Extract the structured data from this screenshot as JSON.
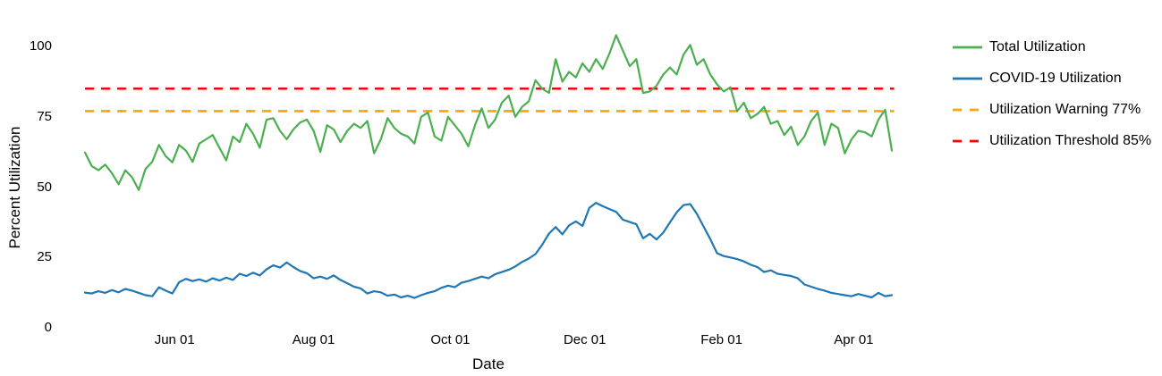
{
  "chart": {
    "background": "#ffffff",
    "text_color": "#000000",
    "y_axis": {
      "title": "Percent Utilization",
      "ticks": [
        0,
        25,
        50,
        75,
        100
      ]
    },
    "x_axis": {
      "title": "Date",
      "ticks": [
        {
          "label": "Jun 01",
          "day": 40
        },
        {
          "label": "Aug 01",
          "day": 102
        },
        {
          "label": "Oct 01",
          "day": 163
        },
        {
          "label": "Dec 01",
          "day": 223
        },
        {
          "label": "Feb 01",
          "day": 284
        },
        {
          "label": "Apr 01",
          "day": 343
        }
      ]
    }
  },
  "chart_data": {
    "type": "line",
    "title": "",
    "xlabel": "Date",
    "ylabel": "Percent Utilization",
    "x_unit": "day offset of a one-year daily time series (day 0 ≈ late April, ticks at month starts)",
    "interval_days": 3,
    "x_range_days": [
      0,
      360
    ],
    "ylim": [
      0,
      105
    ],
    "grid": false,
    "axis_lines": false,
    "legend_position": "right",
    "series": [
      {
        "name": "Total Utilization",
        "color": "#4caf50",
        "dash": "solid",
        "values": [
          62.3,
          57.5,
          56,
          58,
          55,
          51,
          56,
          53.5,
          49,
          56.5,
          59,
          65,
          61,
          58.8,
          65,
          63,
          59,
          65.5,
          67,
          68.5,
          64,
          59.5,
          68,
          66,
          72.5,
          69,
          64,
          74,
          74.5,
          70,
          67,
          70.5,
          73,
          74,
          70,
          62.5,
          72,
          70.5,
          66,
          70,
          72.5,
          71,
          73.5,
          62,
          67,
          74.5,
          71,
          69,
          68,
          65.5,
          75,
          76.5,
          68,
          66.5,
          75,
          72,
          69,
          64.5,
          72,
          78,
          71,
          74,
          80,
          82.5,
          75,
          78.5,
          80.5,
          88,
          85,
          83.5,
          95.5,
          87.5,
          91,
          89,
          94,
          91,
          95.5,
          92,
          97.5,
          104,
          98.5,
          93,
          95.5,
          83.5,
          84,
          86,
          90,
          92.5,
          90,
          97,
          100.5,
          93.5,
          95.5,
          90,
          86.5,
          84,
          85.5,
          77,
          80,
          74.5,
          76,
          78.5,
          72.5,
          73.5,
          68.5,
          71.5,
          65,
          68,
          73.5,
          76.5,
          65,
          72.5,
          71,
          62,
          67,
          70,
          69.5,
          68,
          74,
          77.5,
          63
        ]
      },
      {
        "name": "COVID-19 Utilization",
        "color": "#1f77b4",
        "dash": "solid",
        "values": [
          12.5,
          12.2,
          13,
          12.4,
          13.4,
          12.6,
          13.8,
          13.2,
          12.4,
          11.6,
          11.2,
          14.4,
          13.2,
          12.2,
          16.2,
          17.4,
          16.6,
          17.2,
          16.4,
          17.6,
          16.8,
          17.8,
          17,
          19.2,
          18.4,
          19.6,
          18.6,
          20.8,
          22.2,
          21.4,
          23.2,
          21.6,
          20.2,
          19.4,
          17.6,
          18.2,
          17.4,
          18.6,
          17,
          15.8,
          14.6,
          14,
          12.2,
          13,
          12.6,
          11.4,
          11.8,
          10.8,
          11.4,
          10.6,
          11.6,
          12.4,
          13,
          14.2,
          15,
          14.4,
          16,
          16.6,
          17.4,
          18.2,
          17.6,
          19,
          19.8,
          20.6,
          21.8,
          23.4,
          24.6,
          26.2,
          29.5,
          33.5,
          35.8,
          33.2,
          36.4,
          37.8,
          36.2,
          42.6,
          44.4,
          43.2,
          42.2,
          41.2,
          38.4,
          37.6,
          36.8,
          31.8,
          33.4,
          31.4,
          33.8,
          37.5,
          41,
          43.6,
          44,
          40.5,
          36,
          31.5,
          26.5,
          25.5,
          25,
          24.4,
          23.6,
          22.4,
          21.6,
          19.8,
          20.4,
          19.2,
          18.8,
          18.4,
          17.6,
          15.4,
          14.6,
          13.8,
          13.2,
          12.4,
          12,
          11.6,
          11.2,
          12,
          11.4,
          10.8,
          12.4,
          11.2,
          11.6
        ]
      }
    ],
    "thresholds": [
      {
        "name": "Utilization Warning 77%",
        "value": 77,
        "color": "#ffa500",
        "dash": "dashed"
      },
      {
        "name": "Utilization Threshold 85%",
        "value": 85,
        "color": "#ff0000",
        "dash": "dashed"
      }
    ]
  }
}
